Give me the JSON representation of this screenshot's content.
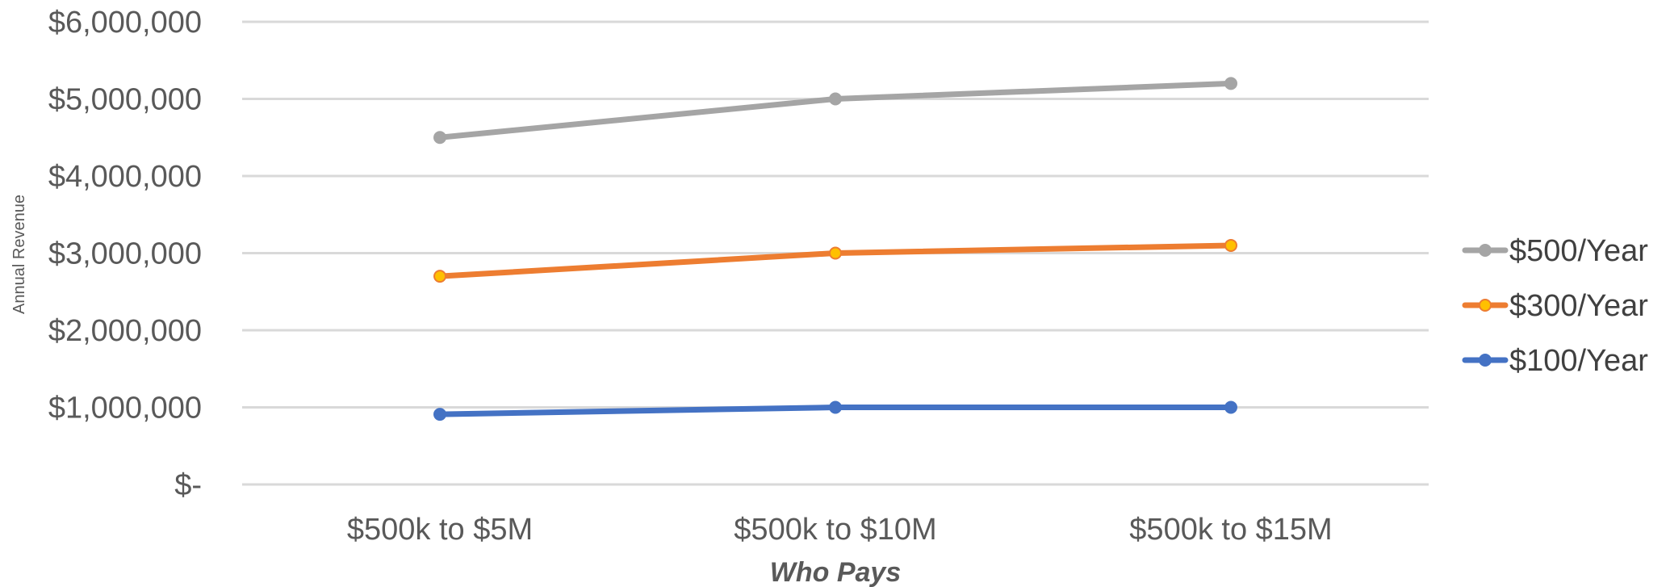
{
  "chart_data": {
    "type": "line",
    "title": "",
    "xlabel": "Who Pays",
    "ylabel": "Annual Revenue",
    "categories": [
      "$500k to $5M",
      "$500k to $10M",
      "$500k to $15M"
    ],
    "ylim": [
      0,
      6000000
    ],
    "yticks": [
      0,
      1000000,
      2000000,
      3000000,
      4000000,
      5000000,
      6000000
    ],
    "ytick_labels": [
      "$-",
      "$1,000,000",
      "$2,000,000",
      "$3,000,000",
      "$4,000,000",
      "$5,000,000",
      "$6,000,000"
    ],
    "grid": true,
    "legend_position": "right",
    "series": [
      {
        "name": "$500/Year",
        "values": [
          4500000,
          5000000,
          5200000
        ],
        "color": "#A5A5A5",
        "marker_fill": "#A5A5A5"
      },
      {
        "name": "$300/Year",
        "values": [
          2700000,
          3000000,
          3100000
        ],
        "color": "#ED7D31",
        "marker_fill": "#FFC000"
      },
      {
        "name": "$100/Year",
        "values": [
          910000,
          1000000,
          1000000
        ],
        "color": "#4472C4",
        "marker_fill": "#4472C4"
      }
    ]
  }
}
